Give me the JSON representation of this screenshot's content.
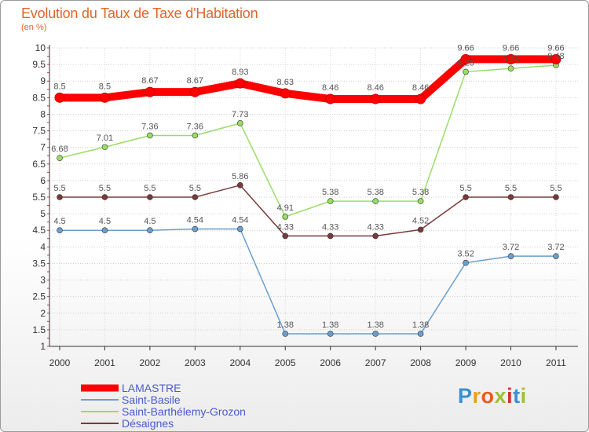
{
  "chart_data": {
    "type": "line",
    "title": "Evolution du Taux de Taxe d'Habitation",
    "subtitle": "(en %)",
    "xlabel": "",
    "ylabel": "",
    "categories": [
      "2000",
      "2001",
      "2002",
      "2003",
      "2004",
      "2005",
      "2006",
      "2007",
      "2008",
      "2009",
      "2010",
      "2011"
    ],
    "ylim": [
      1,
      10
    ],
    "yticks": [
      "1",
      "1.5",
      "2",
      "2.5",
      "3",
      "3.5",
      "4",
      "4.5",
      "5",
      "5.5",
      "6",
      "6.5",
      "7",
      "7.5",
      "8",
      "8.5",
      "9",
      "9.5",
      "10"
    ],
    "series": [
      {
        "name": "LAMASTRE",
        "color": "#ff0000",
        "values": [
          8.5,
          8.5,
          8.67,
          8.67,
          8.93,
          8.63,
          8.46,
          8.46,
          8.46,
          9.66,
          9.66,
          9.66
        ],
        "labels": [
          "8.5",
          "8.5",
          "8.67",
          "8.67",
          "8.93",
          "8.63",
          "8.46",
          "8.46",
          "8.46",
          "9.66",
          "9.66",
          "9.66"
        ]
      },
      {
        "name": "Saint-Basile",
        "color": "#6b9fcf",
        "values": [
          4.5,
          4.5,
          4.5,
          4.54,
          4.54,
          1.38,
          1.38,
          1.38,
          1.38,
          3.52,
          3.72,
          3.72
        ],
        "labels": [
          "4.5",
          "4.5",
          "4.5",
          "4.54",
          "4.54",
          "1.38",
          "1.38",
          "1.38",
          "1.38",
          "3.52",
          "3.72",
          "3.72"
        ]
      },
      {
        "name": "Saint-Barthélemy-Grozon",
        "color": "#99dd66",
        "values": [
          6.68,
          7.01,
          7.36,
          7.36,
          7.73,
          4.91,
          5.38,
          5.38,
          5.38,
          9.28,
          9.38,
          9.48
        ],
        "labels": [
          "6.68",
          "7.01",
          "7.36",
          "7.36",
          "7.73",
          "4.91",
          "5.38",
          "5.38",
          "5.38",
          "9.28",
          "9.38",
          "9.48"
        ]
      },
      {
        "name": "Désaignes",
        "color": "#7a3a3a",
        "values": [
          5.5,
          5.5,
          5.5,
          5.5,
          5.86,
          4.33,
          4.33,
          4.33,
          4.52,
          5.5,
          5.5,
          5.5
        ],
        "labels": [
          "5.5",
          "5.5",
          "5.5",
          "5.5",
          "5.86",
          "4.33",
          "4.33",
          "4.33",
          "4.52",
          "5.5",
          "5.5",
          "5.5"
        ]
      }
    ],
    "grid": true,
    "legend": "bottom-left"
  },
  "branding": {
    "logo_text": "Proxiti",
    "logo_colors": [
      "#3a8fd0",
      "#e8a020",
      "#e85a20",
      "#a0c030",
      "#d03030",
      "#3a8fd0",
      "#a0c030"
    ]
  }
}
